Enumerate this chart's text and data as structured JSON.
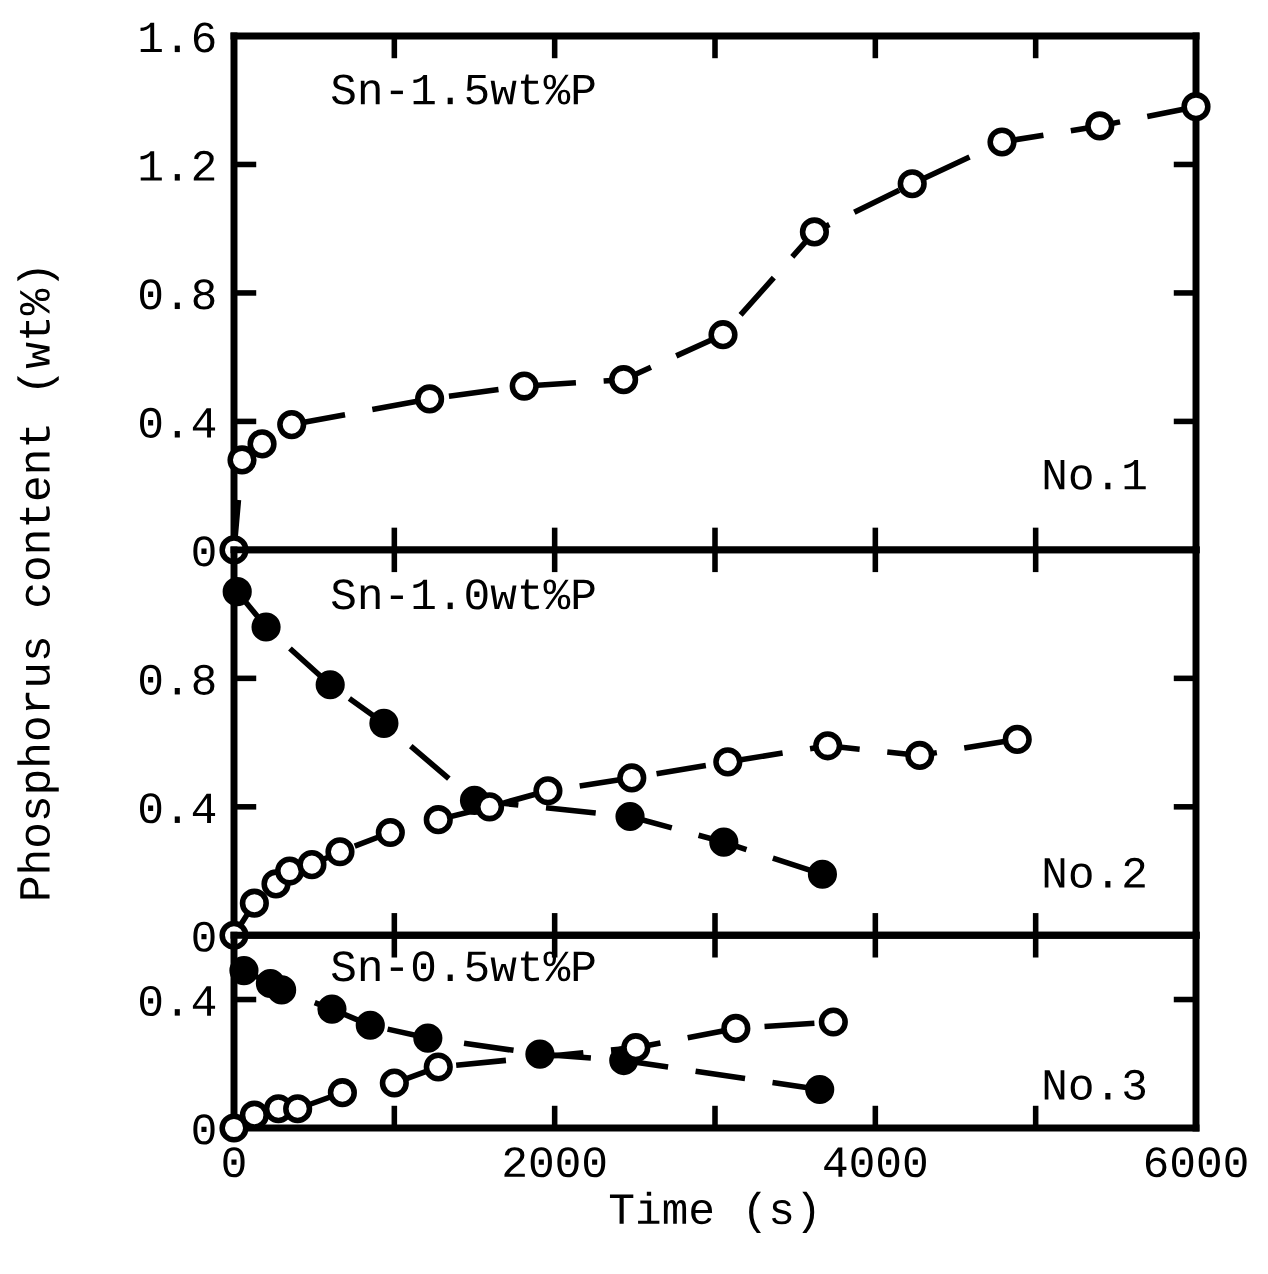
{
  "chart_data": [
    {
      "type": "line",
      "xlim": [
        0,
        6000
      ],
      "ylim": [
        0,
        1.6
      ],
      "xticks": [
        {
          "value": 0,
          "label": null
        },
        {
          "value": 1000,
          "label": null
        },
        {
          "value": 2000,
          "label": null
        },
        {
          "value": 3000,
          "label": null
        },
        {
          "value": 4000,
          "label": null
        },
        {
          "value": 5000,
          "label": null
        },
        {
          "value": 6000,
          "label": null
        }
      ],
      "yticks": [
        0,
        0.4,
        0.8,
        1.2,
        1.6
      ],
      "tick_labels": "y",
      "marker": "circle",
      "line_style": "dashed",
      "grid": false,
      "legend": false,
      "annotations": [
        "Sn-1.5wt%P",
        "No.1"
      ],
      "series": [
        {
          "color": "#ffffff",
          "x": [
            0,
            50,
            175,
            360,
            1220,
            1810,
            2430,
            3050,
            3620,
            4230,
            4790,
            5400,
            6000
          ],
          "values": [
            0,
            0.28,
            0.33,
            0.39,
            0.47,
            0.51,
            0.53,
            0.67,
            0.99,
            1.14,
            1.27,
            1.32,
            1.38
          ]
        }
      ]
    },
    {
      "type": "line",
      "xlim": [
        0,
        6000
      ],
      "ylim": [
        0,
        1.2
      ],
      "xticks": [
        {
          "value": 0,
          "label": null
        },
        {
          "value": 1000,
          "label": null
        },
        {
          "value": 2000,
          "label": null
        },
        {
          "value": 3000,
          "label": null
        },
        {
          "value": 4000,
          "label": null
        },
        {
          "value": 5000,
          "label": null
        },
        {
          "value": 6000,
          "label": null
        }
      ],
      "yticks": [
        0,
        0.4,
        0.8
      ],
      "tick_labels": "y",
      "marker": "circle",
      "line_style": "dashed",
      "grid": false,
      "legend": false,
      "ylabel": "Phosphorus content (wt%)",
      "annotations": [
        "Sn-1.0wt%P",
        "No.2"
      ],
      "series": [
        {
          "color": "#000000",
          "x": [
            20,
            200,
            600,
            935,
            1500,
            2470,
            3055,
            3670
          ],
          "values": [
            1.07,
            0.96,
            0.78,
            0.66,
            0.42,
            0.37,
            0.29,
            0.19
          ]
        },
        {
          "color": "#ffffff",
          "x": [
            0,
            127,
            262,
            347,
            486,
            661,
            975,
            1274,
            1594,
            1958,
            2481,
            3080,
            3703,
            4277,
            4885
          ],
          "values": [
            0,
            0.1,
            0.16,
            0.2,
            0.22,
            0.26,
            0.32,
            0.36,
            0.4,
            0.45,
            0.49,
            0.54,
            0.59,
            0.56,
            0.61
          ]
        }
      ]
    },
    {
      "type": "line",
      "xlim": [
        0,
        6000
      ],
      "ylim": [
        0,
        0.6
      ],
      "xticks": [
        0,
        {
          "value": 1000,
          "label": null
        },
        2000,
        {
          "value": 3000,
          "label": null
        },
        4000,
        {
          "value": 5000,
          "label": null
        },
        6000
      ],
      "yticks": [
        0,
        0.4
      ],
      "marker": "circle",
      "line_style": "dashed",
      "grid": false,
      "legend": false,
      "xlabel": "Time (s)",
      "annotations": [
        "Sn-0.5wt%P",
        "No.3"
      ],
      "series": [
        {
          "color": "#000000",
          "x": [
            62,
            227,
            297,
            611,
            850,
            1209,
            1908,
            2431,
            3653
          ],
          "values": [
            0.49,
            0.45,
            0.43,
            0.37,
            0.32,
            0.28,
            0.23,
            0.21,
            0.12
          ]
        },
        {
          "color": "#ffffff",
          "x": [
            0,
            127,
            277,
            397,
            676,
            1000,
            1274,
            2506,
            3130,
            3738
          ],
          "values": [
            0,
            0.04,
            0.06,
            0.06,
            0.11,
            0.14,
            0.19,
            0.25,
            0.31,
            0.33
          ]
        }
      ]
    }
  ]
}
